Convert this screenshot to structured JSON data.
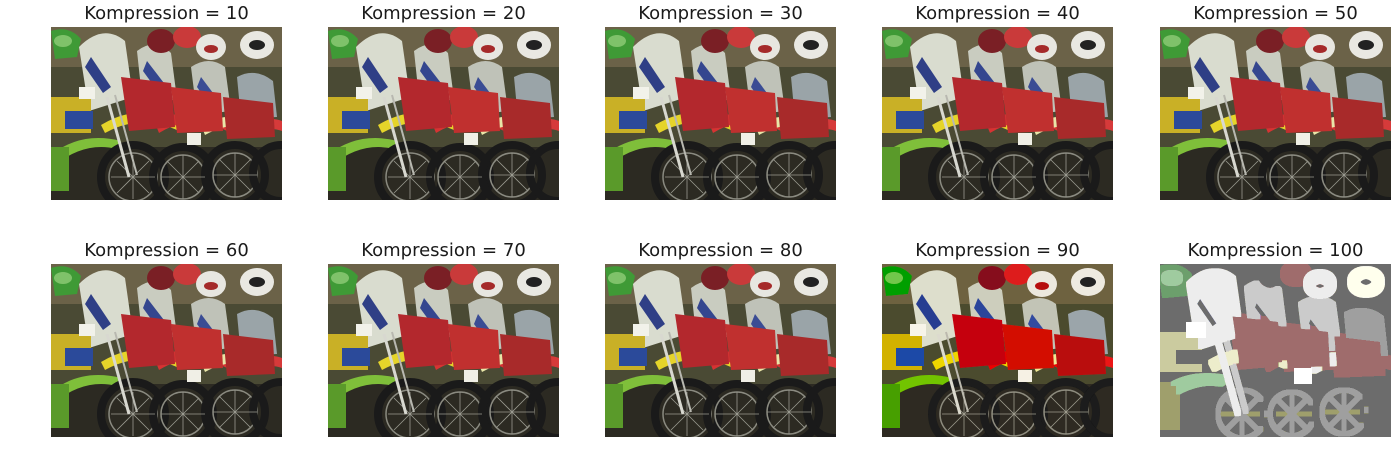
{
  "panels": [
    {
      "title": "Kompression = 10",
      "quality": "normal"
    },
    {
      "title": "Kompression = 20",
      "quality": "normal"
    },
    {
      "title": "Kompression = 30",
      "quality": "normal"
    },
    {
      "title": "Kompression = 40",
      "quality": "normal"
    },
    {
      "title": "Kompression = 50",
      "quality": "normal"
    },
    {
      "title": "Kompression = 60",
      "quality": "normal"
    },
    {
      "title": "Kompression = 70",
      "quality": "normal"
    },
    {
      "title": "Kompression = 80",
      "quality": "normal"
    },
    {
      "title": "Kompression = 90",
      "quality": "slightly-degraded"
    },
    {
      "title": "Kompression = 100",
      "quality": "heavily-degraded"
    }
  ],
  "colors": {
    "background": "#ffffff",
    "title_text": "#1a1a1a"
  }
}
